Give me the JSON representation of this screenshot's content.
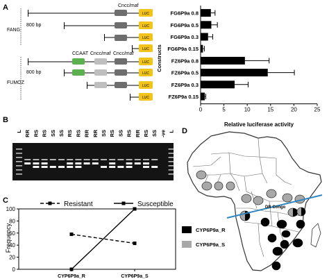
{
  "panel_labels": {
    "a": "A",
    "b": "B",
    "c": "C",
    "d": "D"
  },
  "panel_a": {
    "group_fang": "FANG",
    "group_fumoz": "FUMOZ",
    "bp_label_fang": "800 bp",
    "bp_label_fumoz": "800 bp",
    "cncc_label_fang": "Cncc/maf",
    "ccaat_label": "CCAAT",
    "cncc_label_1": "Cncc/maf",
    "cncc_label_2": "Cncc/maf",
    "luc_label": "LUC",
    "constructs_label": "Constructs",
    "colors": {
      "cncc_box": "#6e6e6e",
      "luc_box": "#f2c318",
      "ccaat_box": "#5bb14e",
      "cncc_light_box": "#bfbfbf"
    }
  },
  "chart_data": [
    {
      "type": "bar",
      "orientation": "horizontal",
      "categories": [
        "FG6P9a 0.8",
        "FG6P9a 0.5",
        "FG6P9a 0.3",
        "FG6P9a 0.15",
        "FZ6P9a 0.8",
        "FZ6P9a 0.5",
        "FZ6P9a 0.3",
        "FZ6P9a 0.15"
      ],
      "values": [
        2.2,
        2.3,
        1.6,
        0.5,
        9.5,
        14.4,
        7.3,
        0.9
      ],
      "errors": [
        0.9,
        1.3,
        1.0,
        0.3,
        5.2,
        5.7,
        2.9,
        0.2
      ],
      "xlabel": "Relative luciferase activity",
      "ylabel": "Constructs",
      "xlim": [
        0,
        25
      ],
      "xticks": [
        0,
        5,
        10,
        15,
        20,
        25
      ]
    },
    {
      "type": "line",
      "categories": [
        "CYP6P9a_R",
        "CYP6P9a_S"
      ],
      "series": [
        {
          "name": "Resistant",
          "values": [
            58,
            43
          ],
          "style": "dashed"
        },
        {
          "name": "Susceptible",
          "values": [
            0,
            100
          ],
          "style": "solid"
        }
      ],
      "ylabel": "Frequency",
      "ylim": [
        0,
        100
      ],
      "yticks": [
        0,
        20,
        40,
        60,
        80,
        100
      ]
    }
  ],
  "panel_b": {
    "lanes": [
      "L",
      "RR",
      "RS",
      "RS",
      "SS",
      "SS",
      "RS",
      "RS",
      "RR",
      "RR",
      "SS",
      "RS",
      "SS",
      "RS",
      "RR",
      "RS",
      "SS",
      "-ve",
      "L"
    ]
  },
  "panel_d": {
    "country_label": "DR Congo",
    "legend": [
      {
        "label": "CYP6P9a_R",
        "color": "#000000"
      },
      {
        "label": "CYP6P9a_S",
        "color": "#a8a8a8"
      }
    ],
    "line_color": "#2e86c1"
  }
}
